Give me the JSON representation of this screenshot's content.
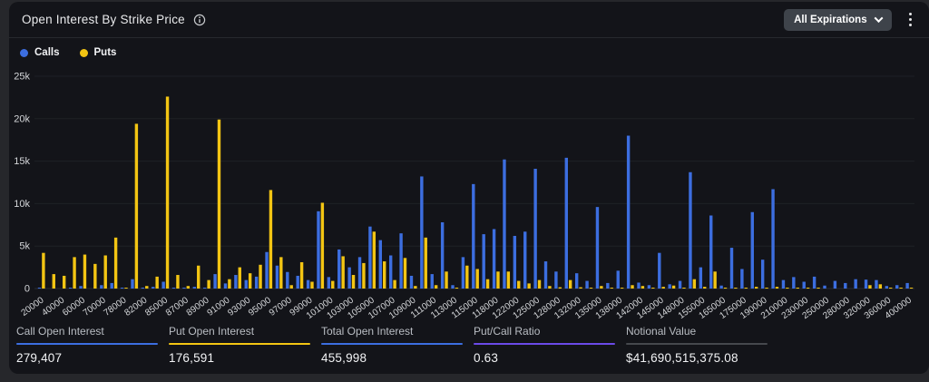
{
  "header": {
    "title": "Open Interest By Strike Price",
    "dropdown_label": "All Expirations"
  },
  "legend": {
    "calls": "Calls",
    "puts": "Puts"
  },
  "colors": {
    "calls": "#3C6EE0",
    "puts": "#F3C513",
    "putcall_underline": "#6B4AE8",
    "notional_underline": "#45484D",
    "grid": "#1E2126",
    "axis": "#2A2D33",
    "tick_text": "#D4D6D9"
  },
  "stats": [
    {
      "label": "Call Open Interest",
      "value": "279,407",
      "underline": "#3C6EE0"
    },
    {
      "label": "Put Open Interest",
      "value": "176,591",
      "underline": "#F3C513"
    },
    {
      "label": "Total Open Interest",
      "value": "455,998",
      "underline": "#3C6EE0"
    },
    {
      "label": "Put/Call Ratio",
      "value": "0.63",
      "underline": "#6B4AE8"
    },
    {
      "label": "Notional Value",
      "value": "$41,690,515,375.08",
      "underline": "#45484D"
    }
  ],
  "chart_data": {
    "type": "bar",
    "title": "Open Interest By Strike Price",
    "xlabel": "Strike Price",
    "ylabel": "Open Interest",
    "ylim": [
      0,
      25000
    ],
    "grid": true,
    "legend_position": "top-left",
    "y_tick_labels": [
      "0",
      "5k",
      "10k",
      "15k",
      "20k",
      "25k"
    ],
    "x_tick_labels": [
      "20000",
      "40000",
      "60000",
      "70000",
      "78000",
      "82000",
      "85000",
      "87000",
      "89000",
      "91000",
      "93000",
      "95000",
      "97000",
      "99000",
      "101000",
      "103000",
      "105000",
      "107000",
      "109000",
      "111000",
      "113000",
      "115000",
      "118000",
      "122000",
      "125000",
      "128000",
      "132000",
      "135000",
      "138000",
      "142000",
      "145000",
      "148000",
      "155000",
      "165000",
      "175000",
      "190000",
      "210000",
      "230000",
      "250000",
      "280000",
      "320000",
      "360000",
      "400000"
    ],
    "label_every": 2,
    "series": [
      {
        "name": "Calls",
        "color": "#3C6EE0",
        "values": [
          50,
          0,
          0,
          100,
          300,
          0,
          400,
          650,
          50,
          1100,
          50,
          200,
          800,
          100,
          50,
          200,
          100,
          1700,
          600,
          1600,
          1000,
          1400,
          4300,
          2700,
          1950,
          1500,
          1000,
          9100,
          1350,
          4600,
          2500,
          3700,
          7300,
          5700,
          3900,
          6500,
          1500,
          13200,
          1700,
          7800,
          400,
          3700,
          12300,
          6400,
          7000,
          15200,
          6200,
          6700,
          14100,
          3200,
          2000,
          15400,
          1800,
          900,
          9600,
          650,
          2100,
          18000,
          700,
          400,
          4200,
          500,
          900,
          13700,
          2500,
          8600,
          350,
          4800,
          2300,
          9000,
          3400,
          11700,
          1000,
          1350,
          800,
          1400,
          350,
          900,
          650,
          1100,
          1050,
          1000,
          300,
          400,
          650
        ]
      },
      {
        "name": "Puts",
        "color": "#F3C513",
        "values": [
          4200,
          1700,
          1500,
          3700,
          4000,
          2900,
          3900,
          6000,
          100,
          19400,
          300,
          1400,
          22600,
          1600,
          300,
          2700,
          1000,
          19900,
          1100,
          2500,
          1800,
          2800,
          11600,
          3700,
          400,
          3100,
          800,
          10100,
          900,
          3800,
          1600,
          3000,
          6700,
          3200,
          1000,
          3600,
          300,
          6000,
          400,
          2000,
          100,
          2700,
          2300,
          1100,
          2000,
          2000,
          900,
          600,
          1000,
          300,
          150,
          1000,
          150,
          50,
          300,
          100,
          100,
          400,
          300,
          50,
          200,
          350,
          100,
          1100,
          200,
          2000,
          100,
          100,
          100,
          200,
          100,
          200,
          50,
          50,
          50,
          50,
          0,
          0,
          0,
          0,
          400,
          500,
          50,
          50,
          50
        ]
      }
    ]
  }
}
